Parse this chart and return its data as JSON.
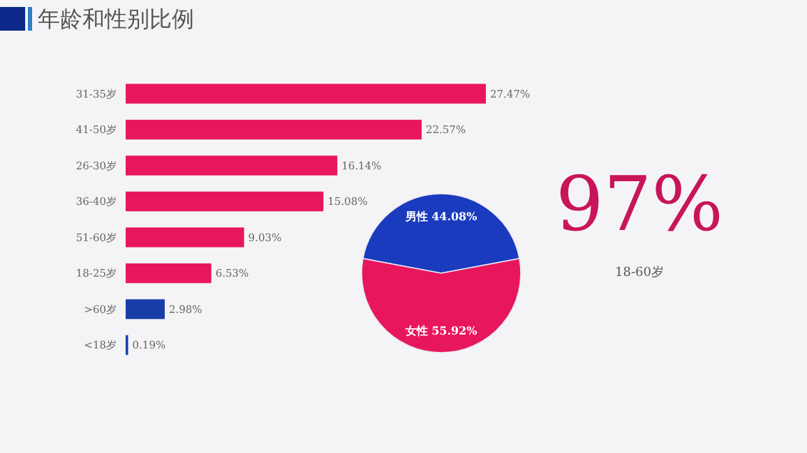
{
  "chart_data": [
    {
      "type": "bar",
      "title": "年龄和性别比例",
      "orientation": "horizontal",
      "categories": [
        "31-35岁",
        "41-50岁",
        "26-30岁",
        "36-40岁",
        "51-60岁",
        "18-25岁",
        ">60岁",
        "<18岁"
      ],
      "values": [
        27.47,
        22.57,
        16.14,
        15.08,
        9.03,
        6.53,
        2.98,
        0.19
      ],
      "colors": [
        "#e8175d",
        "#e8175d",
        "#e8175d",
        "#e8175d",
        "#e8175d",
        "#e8175d",
        "#1a3ea8",
        "#1a3ea8"
      ],
      "value_labels": [
        "27.47%",
        "22.57%",
        "16.14%",
        "15.08%",
        "9.03%",
        "6.53%",
        "2.98%",
        "0.19%"
      ]
    },
    {
      "type": "pie",
      "categories": [
        "男性",
        "女性"
      ],
      "values": [
        44.08,
        55.92
      ],
      "colors": [
        "#1a3bbd",
        "#e8175d"
      ],
      "value_labels": [
        "44.08%",
        "55.92%"
      ]
    },
    {
      "type": "other",
      "annotations": [
        "97%",
        "18-60岁"
      ]
    }
  ]
}
